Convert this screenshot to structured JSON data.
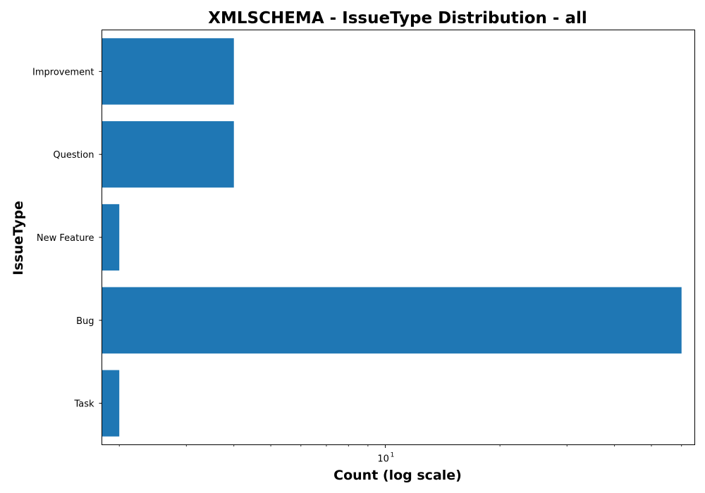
{
  "chart_data": {
    "type": "bar",
    "orientation": "horizontal",
    "title": "XMLSCHEMA - IssueType Distribution - all",
    "xlabel": "Count (log scale)",
    "ylabel": "IssueType",
    "x_scale": "log",
    "xlim": [
      1.8,
      65
    ],
    "x_ticks": [
      {
        "base": "10",
        "exponent": "1",
        "value": 10
      }
    ],
    "grid": false,
    "legend": "none",
    "categories": [
      "Improvement",
      "Question",
      "New Feature",
      "Bug",
      "Task"
    ],
    "values": [
      4,
      4,
      2,
      60,
      2
    ],
    "bar_color": "#1f77b4"
  }
}
